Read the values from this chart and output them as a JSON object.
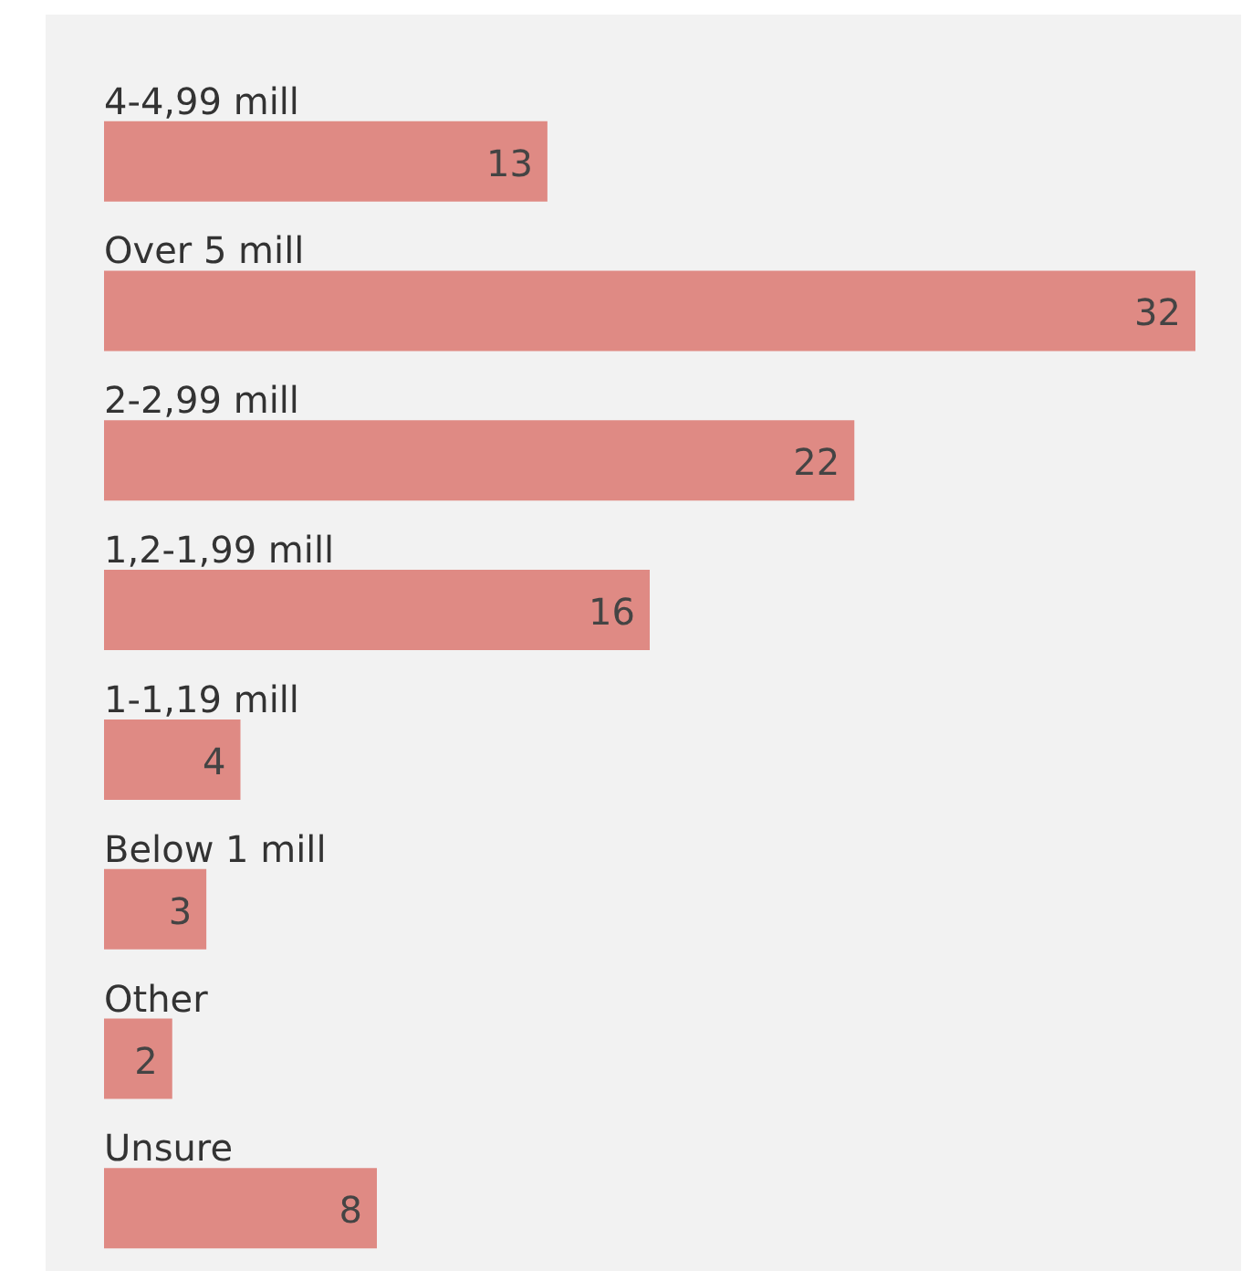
{
  "chart_data": {
    "type": "bar",
    "orientation": "horizontal",
    "categories": [
      "4-4,99 mill",
      "Over 5 mill",
      "2-2,99 mill",
      "1,2-1,99 mill",
      "1-1,19 mill",
      "Below 1 mill",
      "Other",
      "Unsure"
    ],
    "values": [
      13,
      32,
      22,
      16,
      4,
      3,
      2,
      8
    ],
    "color": "#df8a84",
    "data_labels": true
  }
}
